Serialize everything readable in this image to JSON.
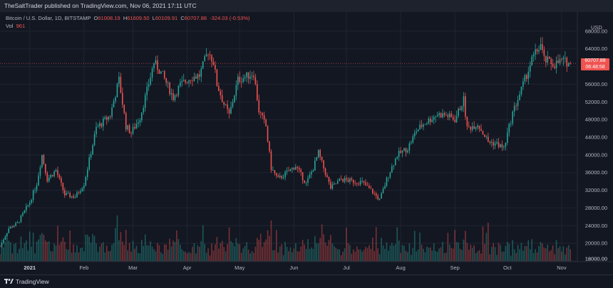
{
  "header": {
    "text": "TheSaltTrader published on TradingView.com, Nov 06, 2021 17:11 UTC"
  },
  "legend": {
    "title": "Bitcoin / U.S. Dollar, 1D, BITSTAMP",
    "o_label": "O",
    "o": "61008.19",
    "h_label": "H",
    "h": "61609.50",
    "l_label": "L",
    "l": "60109.91",
    "c_label": "C",
    "c": "60707.88",
    "change": "-324.03 (-0.53%)",
    "vol_label": "Vol",
    "vol": "961"
  },
  "axis": {
    "currency": "USD",
    "price_tag": "60707.88",
    "countdown": "06:48:58"
  },
  "footer": {
    "brand": "TradingView"
  },
  "colors": {
    "up": "#26a69a",
    "down": "#ef5350",
    "grid": "#1f2430",
    "background": "#131722"
  },
  "chart_data": {
    "type": "candlestick",
    "symbol": "Bitcoin / U.S. Dollar, 1D, BITSTAMP",
    "ylim": [
      16000,
      72000
    ],
    "yticks": [
      12000,
      16000,
      20000,
      24000,
      28000,
      32000,
      36000,
      40000,
      44000,
      48000,
      52000,
      56000,
      60000,
      64000,
      68000
    ],
    "x_tick_labels": [
      {
        "label": "2021",
        "date": "2021-01-01"
      },
      {
        "label": "Feb",
        "date": "2021-02-01"
      },
      {
        "label": "Mar",
        "date": "2021-03-01"
      },
      {
        "label": "Apr",
        "date": "2021-04-01"
      },
      {
        "label": "May",
        "date": "2021-05-01"
      },
      {
        "label": "Jun",
        "date": "2021-06-01"
      },
      {
        "label": "Jul",
        "date": "2021-07-01"
      },
      {
        "label": "Aug",
        "date": "2021-08-01"
      },
      {
        "label": "Sep",
        "date": "2021-09-01"
      },
      {
        "label": "Oct",
        "date": "2021-10-01"
      },
      {
        "label": "Nov",
        "date": "2021-11-01"
      }
    ],
    "x_range": [
      "2020-12-15",
      "2021-11-10"
    ],
    "last_close": 60707.88,
    "close_series": [
      [
        "2020-12-15",
        19300
      ],
      [
        "2020-12-20",
        23400
      ],
      [
        "2020-12-25",
        24500
      ],
      [
        "2021-01-01",
        29300
      ],
      [
        "2021-01-05",
        33500
      ],
      [
        "2021-01-08",
        40000
      ],
      [
        "2021-01-11",
        34500
      ],
      [
        "2021-01-16",
        36500
      ],
      [
        "2021-01-21",
        31000
      ],
      [
        "2021-01-27",
        30500
      ],
      [
        "2021-02-01",
        33500
      ],
      [
        "2021-02-08",
        46000
      ],
      [
        "2021-02-12",
        47500
      ],
      [
        "2021-02-16",
        49000
      ],
      [
        "2021-02-21",
        57000
      ],
      [
        "2021-02-25",
        46500
      ],
      [
        "2021-02-28",
        45000
      ],
      [
        "2021-03-05",
        48500
      ],
      [
        "2021-03-09",
        54500
      ],
      [
        "2021-03-13",
        61000
      ],
      [
        "2021-03-18",
        58000
      ],
      [
        "2021-03-24",
        53000
      ],
      [
        "2021-03-28",
        55800
      ],
      [
        "2021-04-03",
        57500
      ],
      [
        "2021-04-08",
        58000
      ],
      [
        "2021-04-13",
        63500
      ],
      [
        "2021-04-16",
        61000
      ],
      [
        "2021-04-18",
        56000
      ],
      [
        "2021-04-22",
        51500
      ],
      [
        "2021-04-25",
        49000
      ],
      [
        "2021-04-30",
        57000
      ],
      [
        "2021-05-03",
        57500
      ],
      [
        "2021-05-09",
        58500
      ],
      [
        "2021-05-12",
        50000
      ],
      [
        "2021-05-16",
        46500
      ],
      [
        "2021-05-19",
        37000
      ],
      [
        "2021-05-23",
        34500
      ],
      [
        "2021-05-28",
        36000
      ],
      [
        "2021-06-02",
        37500
      ],
      [
        "2021-06-08",
        33500
      ],
      [
        "2021-06-12",
        37000
      ],
      [
        "2021-06-15",
        40500
      ],
      [
        "2021-06-18",
        37000
      ],
      [
        "2021-06-22",
        32500
      ],
      [
        "2021-06-28",
        34500
      ],
      [
        "2021-07-05",
        34000
      ],
      [
        "2021-07-10",
        33800
      ],
      [
        "2021-07-15",
        32000
      ],
      [
        "2021-07-20",
        29800
      ],
      [
        "2021-07-25",
        35500
      ],
      [
        "2021-07-30",
        40000
      ],
      [
        "2021-08-05",
        41500
      ],
      [
        "2021-08-10",
        45500
      ],
      [
        "2021-08-14",
        47000
      ],
      [
        "2021-08-22",
        49200
      ],
      [
        "2021-08-27",
        49000
      ],
      [
        "2021-09-01",
        48000
      ],
      [
        "2021-09-06",
        52500
      ],
      [
        "2021-09-08",
        46000
      ],
      [
        "2021-09-14",
        47000
      ],
      [
        "2021-09-20",
        43000
      ],
      [
        "2021-09-25",
        42500
      ],
      [
        "2021-09-29",
        41500
      ],
      [
        "2021-10-04",
        49500
      ],
      [
        "2021-10-09",
        54800
      ],
      [
        "2021-10-15",
        61500
      ],
      [
        "2021-10-20",
        65000
      ],
      [
        "2021-10-22",
        61500
      ],
      [
        "2021-10-28",
        60500
      ],
      [
        "2021-11-01",
        61300
      ],
      [
        "2021-11-04",
        61000
      ],
      [
        "2021-11-06",
        60707.88
      ]
    ],
    "volume_ylim": [
      0,
      10000
    ]
  }
}
